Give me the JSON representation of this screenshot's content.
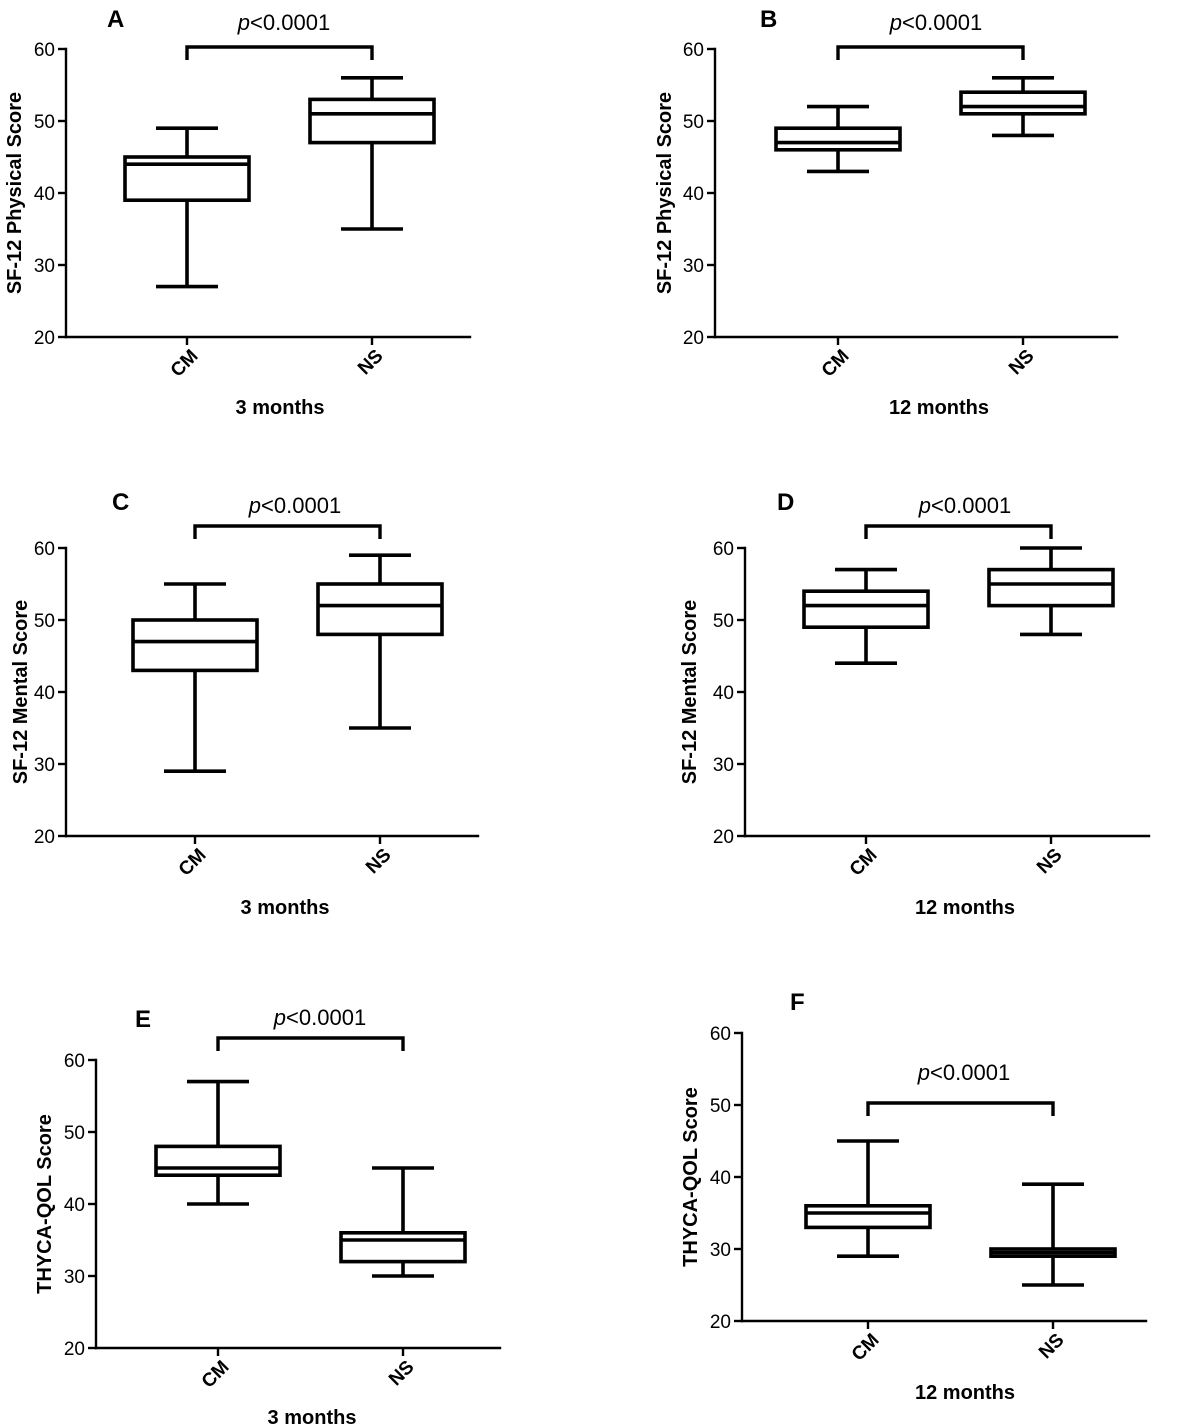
{
  "figure": {
    "ink": "#000000",
    "background": "#ffffff"
  },
  "chart_data": [
    {
      "panel": "A",
      "type": "box",
      "xlabel": "3 months",
      "ylabel": "SF-12 Physical Score",
      "categories": [
        "CM",
        "NS"
      ],
      "ylim": [
        20,
        60
      ],
      "yticks": [
        20,
        30,
        40,
        50,
        60
      ],
      "grid": false,
      "boxes": [
        {
          "min": 27,
          "q1": 39,
          "median": 44,
          "q3": 45,
          "max": 49
        },
        {
          "min": 35,
          "q1": 47,
          "median": 51,
          "q3": 53,
          "max": 56
        }
      ],
      "significance": {
        "symbol": "p",
        "value": "<0.0001"
      }
    },
    {
      "panel": "B",
      "type": "box",
      "xlabel": "12 months",
      "ylabel": "SF-12 Physical Score",
      "categories": [
        "CM",
        "NS"
      ],
      "ylim": [
        20,
        60
      ],
      "yticks": [
        20,
        30,
        40,
        50,
        60
      ],
      "grid": false,
      "boxes": [
        {
          "min": 43,
          "q1": 46,
          "median": 47,
          "q3": 49,
          "max": 52
        },
        {
          "min": 48,
          "q1": 51,
          "median": 52,
          "q3": 54,
          "max": 56
        }
      ],
      "significance": {
        "symbol": "p",
        "value": "<0.0001"
      }
    },
    {
      "panel": "C",
      "type": "box",
      "xlabel": "3 months",
      "ylabel": "SF-12 Mental Score",
      "categories": [
        "CM",
        "NS"
      ],
      "ylim": [
        20,
        60
      ],
      "yticks": [
        20,
        30,
        40,
        50,
        60
      ],
      "grid": false,
      "boxes": [
        {
          "min": 29,
          "q1": 43,
          "median": 47,
          "q3": 50,
          "max": 55
        },
        {
          "min": 35,
          "q1": 48,
          "median": 52,
          "q3": 55,
          "max": 59
        }
      ],
      "significance": {
        "symbol": "p",
        "value": "<0.0001"
      }
    },
    {
      "panel": "D",
      "type": "box",
      "xlabel": "12 months",
      "ylabel": "SF-12 Mental Score",
      "categories": [
        "CM",
        "NS"
      ],
      "ylim": [
        20,
        60
      ],
      "yticks": [
        20,
        30,
        40,
        50,
        60
      ],
      "grid": false,
      "boxes": [
        {
          "min": 44,
          "q1": 49,
          "median": 52,
          "q3": 54,
          "max": 57
        },
        {
          "min": 48,
          "q1": 52,
          "median": 55,
          "q3": 57,
          "max": 60
        }
      ],
      "significance": {
        "symbol": "p",
        "value": "<0.0001"
      }
    },
    {
      "panel": "E",
      "type": "box",
      "xlabel": "3 months",
      "ylabel": "THYCA-QOL Score",
      "categories": [
        "CM",
        "NS"
      ],
      "ylim": [
        20,
        60
      ],
      "yticks": [
        20,
        30,
        40,
        50,
        60
      ],
      "grid": false,
      "boxes": [
        {
          "min": 40,
          "q1": 44,
          "median": 45,
          "q3": 48,
          "max": 57
        },
        {
          "min": 30,
          "q1": 32,
          "median": 35,
          "q3": 36,
          "max": 45
        }
      ],
      "significance": {
        "symbol": "p",
        "value": "<0.0001"
      }
    },
    {
      "panel": "F",
      "type": "box",
      "xlabel": "12 months",
      "ylabel": "THYCA-QOL Score",
      "categories": [
        "CM",
        "NS"
      ],
      "ylim": [
        20,
        60
      ],
      "yticks": [
        20,
        30,
        40,
        50,
        60
      ],
      "grid": false,
      "boxes": [
        {
          "min": 29,
          "q1": 33,
          "median": 35,
          "q3": 36,
          "max": 45
        },
        {
          "min": 25,
          "q1": 29,
          "median": 29.5,
          "q3": 30,
          "max": 39
        }
      ],
      "significance": {
        "symbol": "p",
        "value": "<0.0001"
      }
    }
  ]
}
